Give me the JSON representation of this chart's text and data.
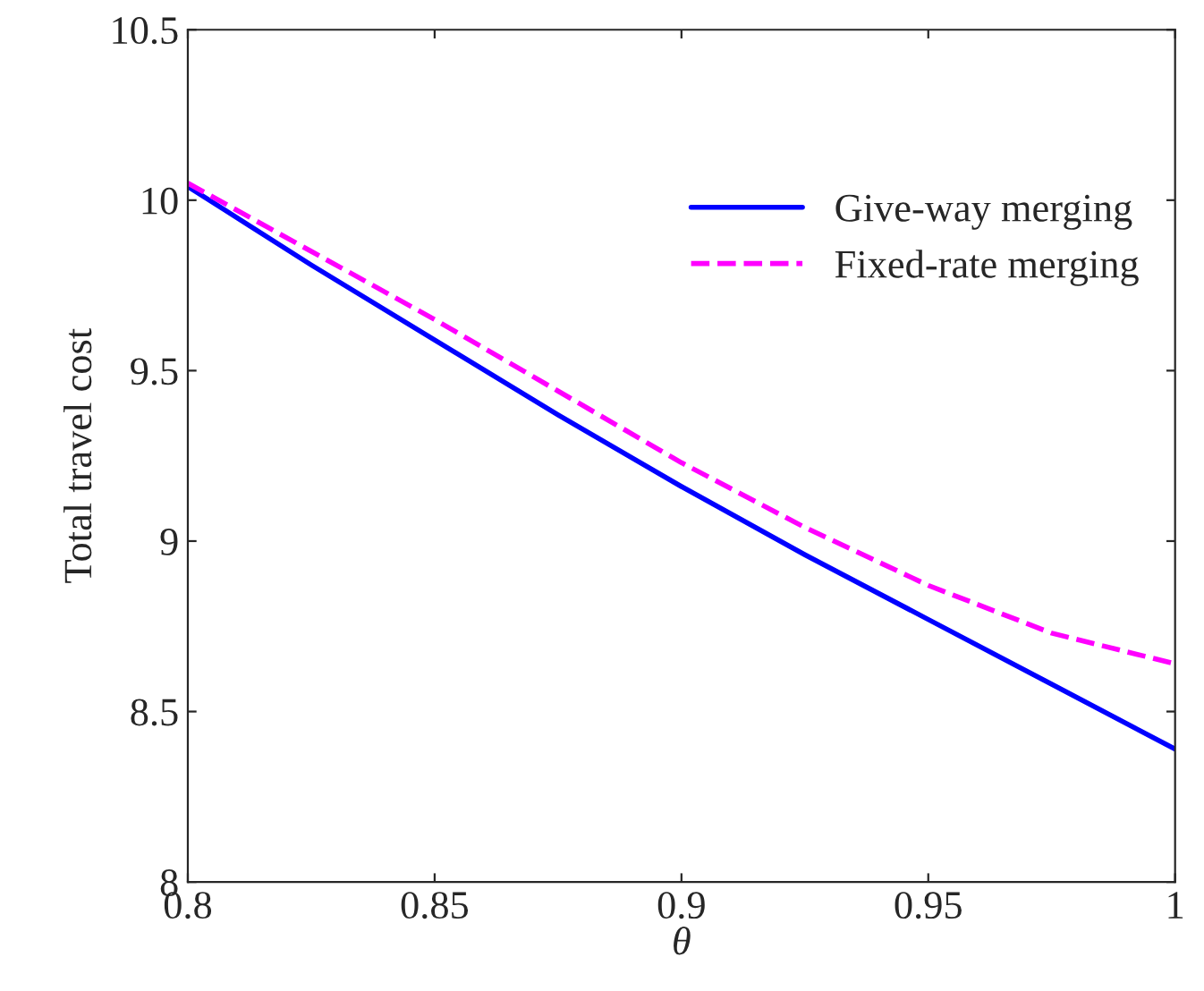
{
  "chart_data": {
    "type": "line",
    "xlabel": "θ",
    "ylabel": "Total travel cost",
    "x": [
      0.8,
      0.825,
      0.85,
      0.875,
      0.9,
      0.925,
      0.95,
      0.975,
      1.0
    ],
    "series": [
      {
        "name": "Give-way merging",
        "color": "#0000ff",
        "line_style": "solid",
        "values": [
          10.04,
          9.81,
          9.59,
          9.37,
          9.16,
          8.96,
          8.77,
          8.58,
          8.39
        ]
      },
      {
        "name": "Fixed-rate merging",
        "color": "#ff00ff",
        "line_style": "dashed",
        "values": [
          10.05,
          9.85,
          9.65,
          9.44,
          9.23,
          9.04,
          8.87,
          8.73,
          8.64
        ]
      }
    ],
    "xlim": [
      0.8,
      1.0
    ],
    "ylim": [
      8,
      10.5
    ],
    "xticks": [
      0.8,
      0.85,
      0.9,
      0.95,
      {
        "value": 1.0,
        "label": "1"
      }
    ],
    "yticks": [
      8,
      8.5,
      9,
      9.5,
      10,
      10.5
    ],
    "legend": "top right",
    "grid": false,
    "marker": "none"
  }
}
